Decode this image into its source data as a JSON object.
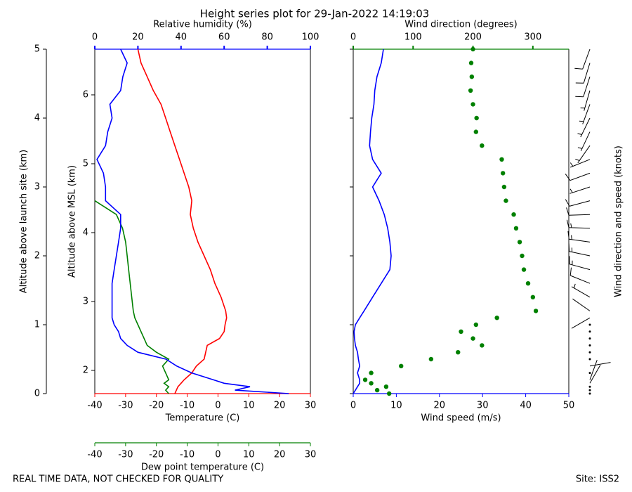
{
  "chart_data": {
    "type": "line",
    "title": "Height series plot for 29-Jan-2022 14:19:03",
    "ylabel": "Altitude above launch site (km)",
    "y2label": "Altitude above MSL (km)",
    "ylim": [
      0,
      5
    ],
    "yticks": [
      0,
      1,
      2,
      3,
      4,
      5
    ],
    "y2lim": [
      1.663,
      6.663
    ],
    "y2ticks": [
      2,
      3,
      4,
      5,
      6
    ],
    "y": [
      0,
      0.05,
      0.1,
      0.15,
      0.2,
      0.3,
      0.4,
      0.5,
      0.6,
      0.7,
      0.8,
      0.9,
      1.0,
      1.1,
      1.2,
      1.4,
      1.6,
      1.8,
      2.0,
      2.2,
      2.4,
      2.6,
      2.8,
      3.0,
      3.2,
      3.4,
      3.6,
      3.8,
      4.0,
      4.2,
      4.4,
      4.6,
      4.8,
      5.0
    ],
    "panels": [
      {
        "axes": {
          "top": {
            "label": "Relative humidity (%)",
            "color": "#0000ff",
            "lim": [
              0,
              100
            ],
            "ticks": [
              0,
              20,
              40,
              60,
              80,
              100
            ]
          },
          "bottom": {
            "label": "Temperature (C)",
            "color": "#ff0000",
            "lim": [
              -40,
              30
            ],
            "ticks": [
              -40,
              -30,
              -20,
              -10,
              0,
              10,
              20,
              30
            ]
          },
          "bottom2": {
            "label": "Dew point temperature (C)",
            "color": "#008000",
            "lim": [
              -40,
              30
            ],
            "ticks": [
              -40,
              -30,
              -20,
              -10,
              0,
              10,
              20,
              30
            ]
          }
        },
        "series": [
          {
            "name": "Temperature",
            "axis": "bottom",
            "color": "#ff0000",
            "style": "line",
            "values": [
              -14,
              -13.5,
              -13,
              -12,
              -11,
              -8.5,
              -7,
              -4.5,
              -4,
              -3.5,
              0.5,
              2,
              2.3,
              2.8,
              2.5,
              1,
              -1,
              -2.5,
              -4.5,
              -6.5,
              -8,
              -9,
              -8.5,
              -9.5,
              -11,
              -12.5,
              -14,
              -15.5,
              -17,
              -18.5,
              -21,
              -23,
              -25,
              -26
            ]
          },
          {
            "name": "Dew point",
            "axis": "bottom2",
            "color": "#008000",
            "style": "line",
            "values": [
              -16,
              -17,
              -16,
              -17.5,
              -16,
              -17,
              -18,
              -16,
              -20,
              -23,
              -24,
              -25,
              -26,
              -27,
              -27.5,
              -28,
              -28.5,
              -29,
              -29.5,
              -30,
              -31,
              -33,
              -40,
              null,
              null,
              null,
              null,
              null,
              null,
              null,
              null,
              null,
              null,
              null
            ]
          },
          {
            "name": "Relative humidity",
            "axis": "top",
            "color": "#0000ff",
            "style": "line",
            "values": [
              90,
              65,
              72,
              60,
              55,
              45,
              38,
              33,
              20,
              15,
              12,
              11,
              9,
              8,
              8,
              8,
              8,
              9,
              10,
              11,
              12,
              12,
              5,
              5,
              4,
              1,
              5,
              6,
              8,
              7,
              12,
              13,
              15,
              12
            ]
          }
        ]
      },
      {
        "axes": {
          "top": {
            "label": "Wind direction (degrees)",
            "color": "#008000",
            "lim": [
              0,
              360
            ],
            "ticks": [
              0,
              100,
              200,
              300
            ]
          },
          "bottom": {
            "label": "Wind speed (m/s)",
            "color": "#0000ff",
            "lim": [
              0,
              50
            ],
            "ticks": [
              0,
              10,
              20,
              30,
              40,
              50
            ]
          }
        },
        "series": [
          {
            "name": "Wind speed",
            "axis": "bottom",
            "color": "#0000ff",
            "style": "line",
            "values": [
              0,
              0.5,
              1,
              1.5,
              1.5,
              1,
              1.5,
              1.2,
              1,
              0.5,
              0.3,
              0.2,
              0.5,
              1.5,
              2.5,
              4.5,
              6.5,
              8.5,
              8.8,
              8.5,
              8,
              7.2,
              6,
              4.5,
              6.5,
              4.5,
              3.8,
              4,
              4.3,
              4.8,
              5,
              5.5,
              6.5,
              7
            ]
          },
          {
            "name": "Wind direction",
            "axis": "top",
            "color": "#008000",
            "style": "dots",
            "values": [
              60,
              40,
              55,
              30,
              20,
              30,
              80,
              130,
              175,
              215,
              200,
              180,
              205,
              240,
              305,
              300,
              292,
              285,
              282,
              278,
              272,
              268,
              255,
              252,
              250,
              248,
              215,
              205,
              206,
              200,
              196,
              198,
              197,
              200
            ]
          }
        ]
      }
    ],
    "barb_label": "Wind direction and speed (knots)"
  },
  "footer": {
    "left": "REAL TIME DATA, NOT CHECKED FOR QUALITY",
    "right": "Site: ISS2"
  }
}
